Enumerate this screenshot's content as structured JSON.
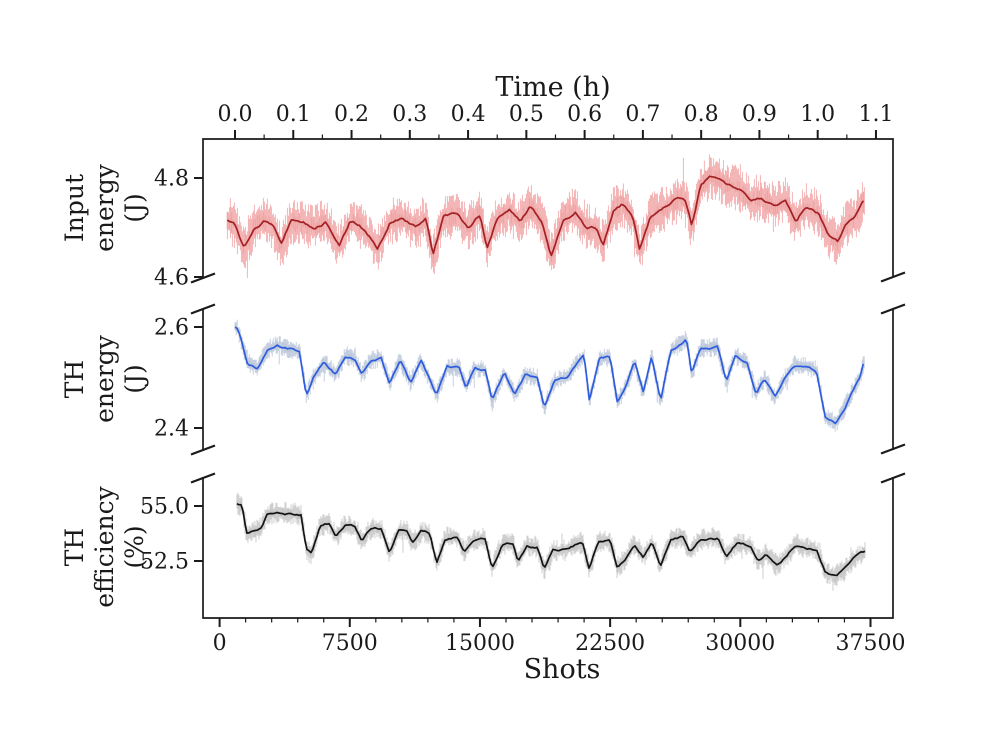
{
  "figure": {
    "background": "#ffffff",
    "ink_color": "#1a1a1a"
  },
  "axes": {
    "top": {
      "title": "Time (h)",
      "unit": "h",
      "tick_values": [
        0.0,
        0.1,
        0.2,
        0.3,
        0.4,
        0.5,
        0.6,
        0.7,
        0.8,
        0.9,
        1.0,
        1.1
      ],
      "tick_labels": [
        "0.0",
        "0.1",
        "0.2",
        "0.3",
        "0.4",
        "0.5",
        "0.6",
        "0.7",
        "0.8",
        "0.9",
        "1.0",
        "1.1"
      ],
      "minor_step": 0.05
    },
    "bottom": {
      "title": "Shots",
      "tick_values": [
        0,
        7500,
        15000,
        22500,
        30000,
        37500
      ],
      "tick_labels": [
        "0",
        "7500",
        "15000",
        "22500",
        "30000",
        "37500"
      ],
      "minor_step": 1500,
      "xlim": [
        -960,
        38800
      ]
    }
  },
  "chart_data": [
    {
      "type": "line",
      "panel": "input-energy",
      "ylabel_lines": [
        "Input",
        "energy",
        "(J)"
      ],
      "ytick_values": [
        4.8,
        4.6
      ],
      "ytick_labels": [
        "4.8",
        "4.6"
      ],
      "ylim": [
        4.6,
        4.88
      ],
      "line_color": "#a32025",
      "band_color": "#f0a2a2",
      "band_halfwidth": 0.042,
      "line_jitter": 0.006,
      "broken_axis": {
        "top": false,
        "bottom": true
      },
      "x": [
        450,
        900,
        1400,
        2000,
        2600,
        3100,
        3550,
        4100,
        4900,
        5500,
        6100,
        6900,
        7500,
        8100,
        9100,
        9800,
        10500,
        11300,
        11900,
        12300,
        12900,
        13700,
        14300,
        15000,
        15400,
        16000,
        16700,
        17300,
        17900,
        18600,
        19100,
        19800,
        20500,
        21100,
        21700,
        22100,
        22700,
        23200,
        23800,
        24200,
        24800,
        25500,
        26200,
        26800,
        27200,
        27700,
        28200,
        28700,
        29300,
        30000,
        30600,
        31200,
        31900,
        32600,
        33200,
        33800,
        34500,
        35100,
        35600,
        36100,
        36600,
        37000,
        37190
      ],
      "y": [
        4.715,
        4.705,
        4.66,
        4.7,
        4.715,
        4.7,
        4.662,
        4.71,
        4.705,
        4.7,
        4.712,
        4.662,
        4.71,
        4.705,
        4.658,
        4.712,
        4.72,
        4.7,
        4.715,
        4.642,
        4.72,
        4.725,
        4.7,
        4.728,
        4.662,
        4.72,
        4.733,
        4.71,
        4.743,
        4.71,
        4.642,
        4.72,
        4.733,
        4.7,
        4.7,
        4.667,
        4.738,
        4.748,
        4.72,
        4.652,
        4.72,
        4.735,
        4.753,
        4.758,
        4.702,
        4.783,
        4.803,
        4.8,
        4.785,
        4.775,
        4.756,
        4.76,
        4.745,
        4.754,
        4.712,
        4.744,
        4.728,
        4.682,
        4.672,
        4.708,
        4.72,
        4.748,
        4.758
      ]
    },
    {
      "type": "line",
      "panel": "th-energy",
      "ylabel_lines": [
        "TH",
        "energy",
        "(J)"
      ],
      "ytick_values": [
        2.6,
        2.4
      ],
      "ytick_labels": [
        "2.6",
        "2.4"
      ],
      "ylim": [
        2.36,
        2.64
      ],
      "line_color": "#2e5cde",
      "band_color": "#b8c4d8",
      "band_halfwidth": 0.017,
      "line_jitter": 0.0045,
      "broken_axis": {
        "top": true,
        "bottom": true
      },
      "x": [
        900,
        1100,
        1600,
        2150,
        2750,
        3300,
        3900,
        4600,
        5000,
        5400,
        6000,
        6700,
        7250,
        7800,
        8200,
        8700,
        9300,
        9800,
        10400,
        11000,
        11600,
        12500,
        13100,
        13800,
        14200,
        14700,
        15300,
        15700,
        16400,
        17000,
        17600,
        18300,
        18700,
        19300,
        20000,
        20600,
        21000,
        21300,
        21900,
        22500,
        22900,
        23400,
        23900,
        24400,
        24900,
        25400,
        26000,
        26600,
        26900,
        27200,
        27700,
        28700,
        29200,
        29700,
        30400,
        30900,
        31400,
        32000,
        32600,
        33100,
        33800,
        34400,
        34900,
        35500,
        36000,
        36500,
        36900,
        37190
      ],
      "y": [
        2.6,
        2.592,
        2.53,
        2.52,
        2.555,
        2.565,
        2.558,
        2.553,
        2.465,
        2.5,
        2.53,
        2.506,
        2.544,
        2.538,
        2.505,
        2.534,
        2.54,
        2.49,
        2.534,
        2.49,
        2.534,
        2.466,
        2.52,
        2.52,
        2.48,
        2.52,
        2.514,
        2.452,
        2.508,
        2.466,
        2.504,
        2.5,
        2.44,
        2.494,
        2.5,
        2.528,
        2.544,
        2.456,
        2.538,
        2.54,
        2.45,
        2.48,
        2.53,
        2.47,
        2.54,
        2.452,
        2.554,
        2.568,
        2.576,
        2.506,
        2.558,
        2.56,
        2.49,
        2.544,
        2.53,
        2.47,
        2.498,
        2.46,
        2.5,
        2.524,
        2.524,
        2.514,
        2.42,
        2.41,
        2.44,
        2.474,
        2.5,
        2.542
      ]
    },
    {
      "type": "line",
      "panel": "th-efficiency",
      "ylabel_lines": [
        "TH",
        "efficiency",
        "(%)"
      ],
      "ytick_values": [
        55.0,
        52.5
      ],
      "ytick_labels": [
        "55.0",
        "52.5"
      ],
      "ylim": [
        49.9,
        56.3
      ],
      "line_color": "#141414",
      "band_color": "#c3c3c3",
      "band_halfwidth": 0.45,
      "line_jitter": 0.1,
      "broken_axis": {
        "top": true,
        "bottom": false
      },
      "x": [
        1000,
        1300,
        1550,
        2100,
        2400,
        2750,
        3400,
        4100,
        4700,
        5000,
        5300,
        5800,
        6300,
        6700,
        7200,
        7800,
        8200,
        8700,
        9300,
        9800,
        10300,
        10800,
        11100,
        11600,
        12100,
        12500,
        13000,
        13700,
        14100,
        14600,
        15300,
        15700,
        16300,
        16900,
        17200,
        17700,
        18300,
        18700,
        19200,
        19900,
        20400,
        20900,
        21300,
        21800,
        22500,
        22900,
        23400,
        23900,
        24400,
        24900,
        25400,
        26000,
        26700,
        27100,
        27700,
        28700,
        29200,
        29800,
        30600,
        31000,
        31500,
        32100,
        32700,
        33200,
        33800,
        34400,
        34900,
        35500,
        36100,
        36500,
        36900,
        37190
      ],
      "y": [
        55.07,
        55.0,
        53.8,
        53.85,
        54.0,
        54.65,
        54.7,
        54.66,
        54.6,
        53.0,
        52.85,
        54.1,
        54.2,
        53.6,
        54.1,
        54.05,
        53.4,
        53.95,
        54.0,
        52.85,
        53.9,
        53.85,
        53.3,
        53.8,
        53.75,
        52.4,
        53.55,
        53.6,
        52.9,
        53.45,
        53.5,
        52.2,
        53.3,
        53.3,
        52.5,
        53.2,
        53.15,
        52.1,
        52.95,
        53.0,
        53.2,
        53.35,
        52.1,
        53.35,
        53.4,
        52.2,
        52.6,
        53.3,
        52.7,
        53.4,
        52.3,
        53.5,
        53.6,
        52.9,
        53.5,
        53.55,
        52.7,
        53.3,
        53.2,
        52.5,
        52.8,
        52.3,
        52.75,
        53.25,
        53.1,
        53.0,
        52.0,
        51.8,
        52.2,
        52.55,
        52.8,
        52.9
      ]
    }
  ]
}
